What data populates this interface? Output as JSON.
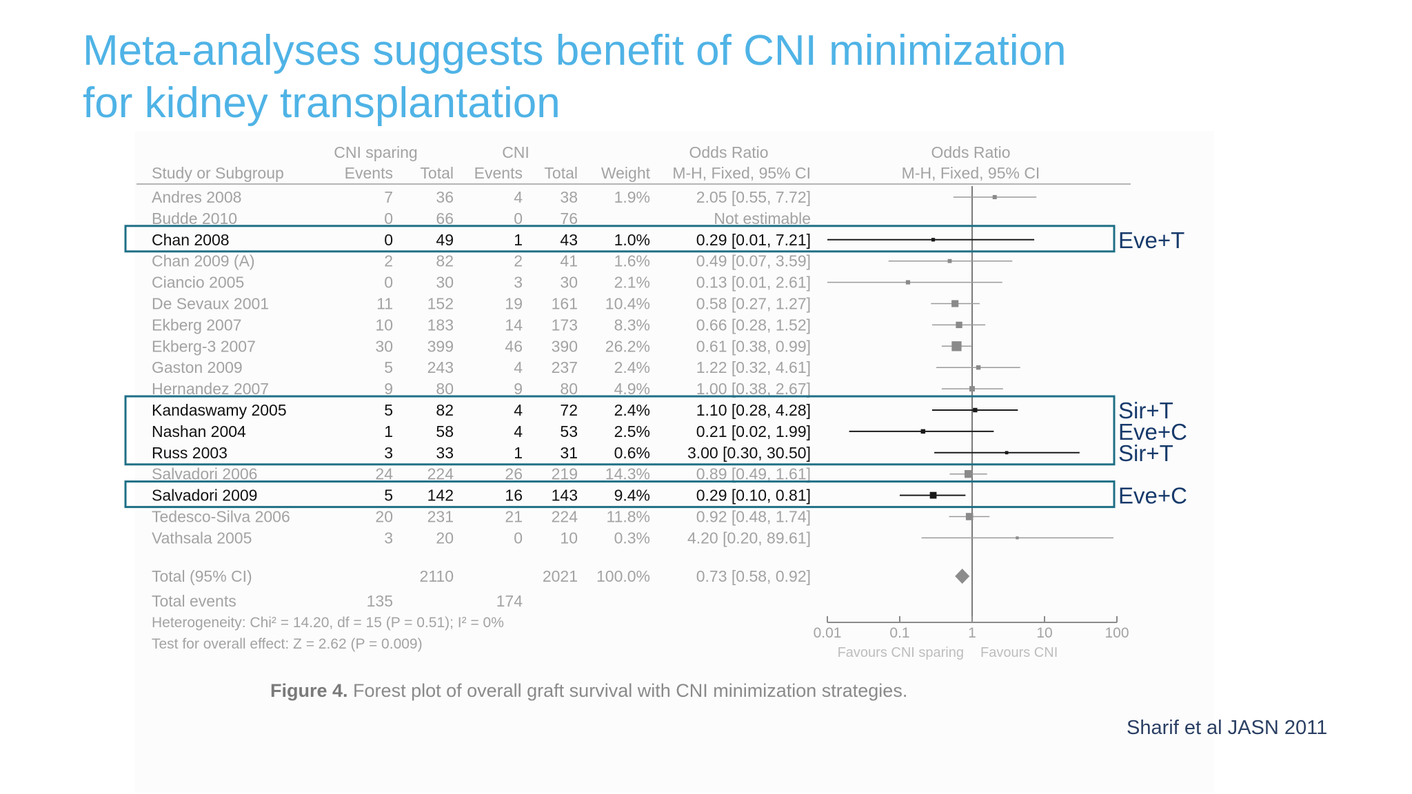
{
  "slide": {
    "title_line1": "Meta-analyses suggests benefit of CNI minimization",
    "title_line2": "for kidney transplantation",
    "citation": "Sharif et al JASN 2011",
    "colors": {
      "title": "#4fb3e6",
      "highlight_box": "#1f6f86",
      "citation": "#2a3f63",
      "faded_text": "#a3a3a3",
      "dark_text": "#111111"
    }
  },
  "figure": {
    "caption_label": "Figure 4.",
    "caption_text": "Forest plot of overall graft survival with CNI minimization strategies."
  },
  "chart_data": {
    "type": "table",
    "subtype": "forest-plot",
    "headers": {
      "group_sparing": "CNI sparing",
      "group_cni": "CNI",
      "study": "Study or Subgroup",
      "events_1": "Events",
      "total_1": "Total",
      "events_2": "Events",
      "total_2": "Total",
      "weight": "Weight",
      "or_text_title": "Odds Ratio",
      "or_text_method": "M-H, Fixed, 95% CI",
      "or_plot_title": "Odds Ratio",
      "or_plot_method": "M-H, Fixed, 95% CI"
    },
    "studies": [
      {
        "study": "Andres 2008",
        "e1": "7",
        "t1": "36",
        "e2": "4",
        "t2": "38",
        "weight": "1.9%",
        "ci_text": "2.05 [0.55, 7.72]",
        "or": 2.05,
        "lo": 0.55,
        "hi": 7.72,
        "w": 1.9,
        "highlight": false
      },
      {
        "study": "Budde 2010",
        "e1": "0",
        "t1": "66",
        "e2": "0",
        "t2": "76",
        "weight": "",
        "ci_text": "Not estimable",
        "or": null,
        "lo": null,
        "hi": null,
        "w": 0,
        "highlight": false
      },
      {
        "study": "Chan 2008",
        "e1": "0",
        "t1": "49",
        "e2": "1",
        "t2": "43",
        "weight": "1.0%",
        "ci_text": "0.29 [0.01, 7.21]",
        "or": 0.29,
        "lo": 0.01,
        "hi": 7.21,
        "w": 1.0,
        "highlight": true
      },
      {
        "study": "Chan 2009 (A)",
        "e1": "2",
        "t1": "82",
        "e2": "2",
        "t2": "41",
        "weight": "1.6%",
        "ci_text": "0.49 [0.07, 3.59]",
        "or": 0.49,
        "lo": 0.07,
        "hi": 3.59,
        "w": 1.6,
        "highlight": false
      },
      {
        "study": "Ciancio 2005",
        "e1": "0",
        "t1": "30",
        "e2": "3",
        "t2": "30",
        "weight": "2.1%",
        "ci_text": "0.13 [0.01, 2.61]",
        "or": 0.13,
        "lo": 0.01,
        "hi": 2.61,
        "w": 2.1,
        "highlight": false
      },
      {
        "study": "De Sevaux 2001",
        "e1": "11",
        "t1": "152",
        "e2": "19",
        "t2": "161",
        "weight": "10.4%",
        "ci_text": "0.58 [0.27, 1.27]",
        "or": 0.58,
        "lo": 0.27,
        "hi": 1.27,
        "w": 10.4,
        "highlight": false
      },
      {
        "study": "Ekberg 2007",
        "e1": "10",
        "t1": "183",
        "e2": "14",
        "t2": "173",
        "weight": "8.3%",
        "ci_text": "0.66 [0.28, 1.52]",
        "or": 0.66,
        "lo": 0.28,
        "hi": 1.52,
        "w": 8.3,
        "highlight": false
      },
      {
        "study": "Ekberg-3 2007",
        "e1": "30",
        "t1": "399",
        "e2": "46",
        "t2": "390",
        "weight": "26.2%",
        "ci_text": "0.61 [0.38, 0.99]",
        "or": 0.61,
        "lo": 0.38,
        "hi": 0.99,
        "w": 26.2,
        "highlight": false
      },
      {
        "study": "Gaston 2009",
        "e1": "5",
        "t1": "243",
        "e2": "4",
        "t2": "237",
        "weight": "2.4%",
        "ci_text": "1.22 [0.32, 4.61]",
        "or": 1.22,
        "lo": 0.32,
        "hi": 4.61,
        "w": 2.4,
        "highlight": false
      },
      {
        "study": "Hernandez 2007",
        "e1": "9",
        "t1": "80",
        "e2": "9",
        "t2": "80",
        "weight": "4.9%",
        "ci_text": "1.00 [0.38, 2.67]",
        "or": 1.0,
        "lo": 0.38,
        "hi": 2.67,
        "w": 4.9,
        "highlight": false
      },
      {
        "study": "Kandaswamy 2005",
        "e1": "5",
        "t1": "82",
        "e2": "4",
        "t2": "72",
        "weight": "2.4%",
        "ci_text": "1.10 [0.28, 4.28]",
        "or": 1.1,
        "lo": 0.28,
        "hi": 4.28,
        "w": 2.4,
        "highlight": true
      },
      {
        "study": "Nashan 2004",
        "e1": "1",
        "t1": "58",
        "e2": "4",
        "t2": "53",
        "weight": "2.5%",
        "ci_text": "0.21 [0.02, 1.99]",
        "or": 0.21,
        "lo": 0.02,
        "hi": 1.99,
        "w": 2.5,
        "highlight": true
      },
      {
        "study": "Russ 2003",
        "e1": "3",
        "t1": "33",
        "e2": "1",
        "t2": "31",
        "weight": "0.6%",
        "ci_text": "3.00 [0.30, 30.50]",
        "or": 3.0,
        "lo": 0.3,
        "hi": 30.5,
        "w": 0.6,
        "highlight": true
      },
      {
        "study": "Salvadori 2006",
        "e1": "24",
        "t1": "224",
        "e2": "26",
        "t2": "219",
        "weight": "14.3%",
        "ci_text": "0.89 [0.49, 1.61]",
        "or": 0.89,
        "lo": 0.49,
        "hi": 1.61,
        "w": 14.3,
        "highlight": false
      },
      {
        "study": "Salvadori 2009",
        "e1": "5",
        "t1": "142",
        "e2": "16",
        "t2": "143",
        "weight": "9.4%",
        "ci_text": "0.29 [0.10, 0.81]",
        "or": 0.29,
        "lo": 0.1,
        "hi": 0.81,
        "w": 9.4,
        "highlight": true
      },
      {
        "study": "Tedesco-Silva 2006",
        "e1": "20",
        "t1": "231",
        "e2": "21",
        "t2": "224",
        "weight": "11.8%",
        "ci_text": "0.92 [0.48, 1.74]",
        "or": 0.92,
        "lo": 0.48,
        "hi": 1.74,
        "w": 11.8,
        "highlight": false
      },
      {
        "study": "Vathsala 2005",
        "e1": "3",
        "t1": "20",
        "e2": "0",
        "t2": "10",
        "weight": "0.3%",
        "ci_text": "4.20 [0.20, 89.61]",
        "or": 4.2,
        "lo": 0.2,
        "hi": 89.61,
        "w": 0.3,
        "highlight": false
      }
    ],
    "total": {
      "label": "Total (95% CI)",
      "t1": "2110",
      "t2": "2021",
      "weight": "100.0%",
      "ci_text": "0.73 [0.58, 0.92]",
      "or": 0.73,
      "lo": 0.58,
      "hi": 0.92
    },
    "total_events": {
      "label": "Total events",
      "e1": "135",
      "e2": "174"
    },
    "heterogeneity": "Heterogeneity: Chi² = 14.20, df = 15 (P = 0.51); I² = 0%",
    "overall_effect": "Test for overall effect: Z = 2.62 (P = 0.009)",
    "x_axis": {
      "scale": "log",
      "range": [
        0.01,
        100
      ],
      "ticks": [
        "0.01",
        "0.1",
        "1",
        "10",
        "100"
      ],
      "tick_values": [
        0.01,
        0.1,
        1,
        10,
        100
      ],
      "left_label": "Favours CNI sparing",
      "right_label": "Favours CNI"
    },
    "annotations": [
      {
        "label": "Eve+T",
        "studies": [
          "Chan 2008"
        ]
      },
      {
        "label": "Sir+T",
        "studies": [
          "Kandaswamy 2005"
        ]
      },
      {
        "label": "Eve+C",
        "studies": [
          "Nashan 2004"
        ]
      },
      {
        "label": "Sir+T",
        "studies": [
          "Russ 2003"
        ]
      },
      {
        "label": "Eve+C",
        "studies": [
          "Salvadori 2009"
        ]
      }
    ]
  }
}
